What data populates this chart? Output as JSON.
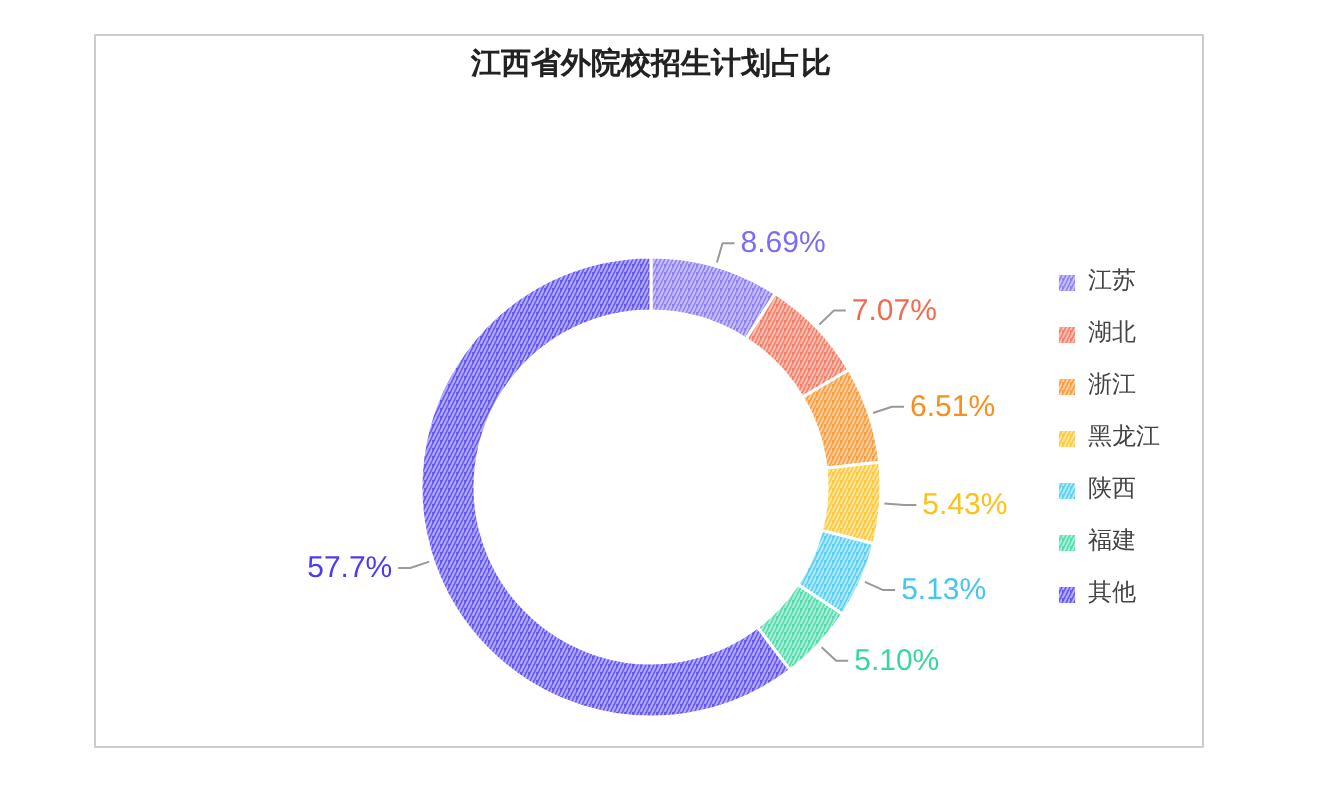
{
  "chart_data": {
    "type": "donut",
    "title": "江西省外院校招生计划占比",
    "categories": [
      "江苏",
      "湖北",
      "浙江",
      "黑龙江",
      "陕西",
      "福建",
      "其他"
    ],
    "values": [
      8.69,
      7.07,
      6.51,
      5.43,
      5.13,
      5.1,
      57.7
    ],
    "colors": [
      "#7b6cf6",
      "#f26a4f",
      "#f98d1e",
      "#fcc11d",
      "#42c8ee",
      "#3ad6a0",
      "#4b3bf5"
    ],
    "value_labels": [
      "8.69%",
      "7.07%",
      "6.51%",
      "5.43%",
      "5.13%",
      "5.10%",
      "57.7%"
    ],
    "legend": "right"
  }
}
